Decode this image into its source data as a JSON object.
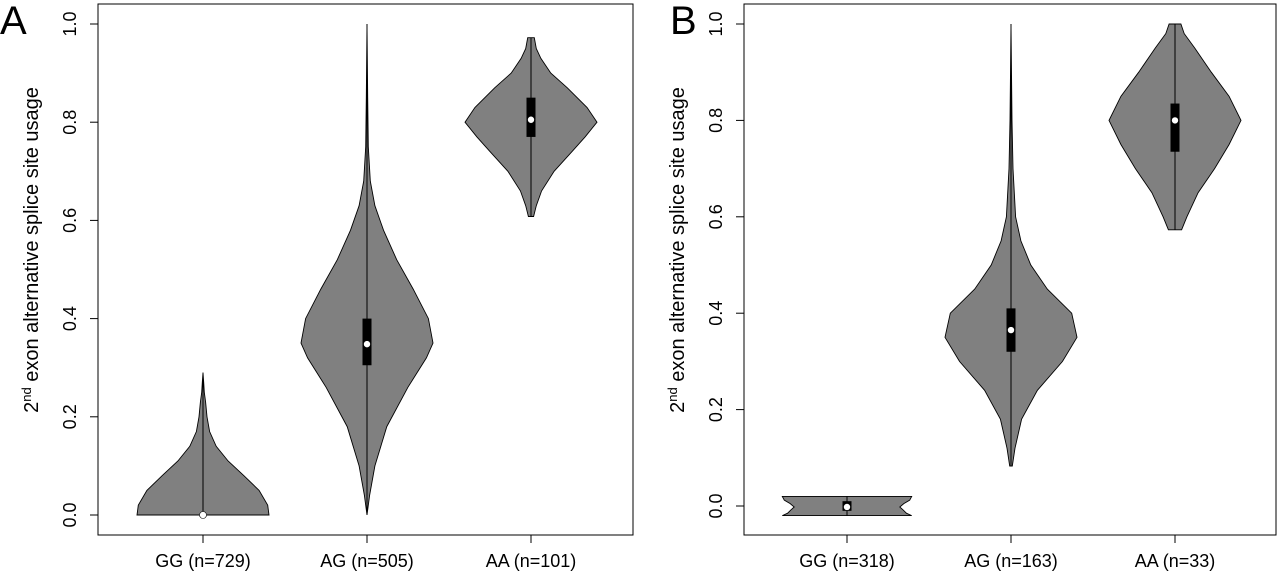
{
  "chart_data": [
    {
      "panel": "A",
      "type": "violin",
      "ylabel_main": "exon alternative splice site usage",
      "ylabel_num": "2",
      "ylabel_sup": "nd",
      "ylim": [
        -0.03,
        1.04
      ],
      "yticks": [
        0.0,
        0.2,
        0.4,
        0.6,
        0.8,
        1.0
      ],
      "ytick_labels": [
        "0.0",
        "0.2",
        "0.4",
        "0.6",
        "0.8",
        "1.0"
      ],
      "categories": [
        "GG (n=729)",
        "AG (n=505)",
        "AA (n=101)"
      ],
      "fill_color": "#808080",
      "violins": [
        {
          "category": "GG (n=729)",
          "min": 0.0,
          "max": 0.29,
          "q1": 0.0,
          "median": 0.0,
          "q3": 0.0,
          "profile": [
            [
              0.0,
              1.0
            ],
            [
              0.02,
              0.98
            ],
            [
              0.05,
              0.85
            ],
            [
              0.08,
              0.62
            ],
            [
              0.11,
              0.38
            ],
            [
              0.14,
              0.2
            ],
            [
              0.17,
              0.1
            ],
            [
              0.2,
              0.06
            ],
            [
              0.23,
              0.04
            ],
            [
              0.25,
              0.02
            ],
            [
              0.27,
              0.01
            ],
            [
              0.29,
              0.0
            ]
          ]
        },
        {
          "category": "AG (n=505)",
          "min": 0.0,
          "max": 1.0,
          "q1": 0.305,
          "median": 0.348,
          "q3": 0.4,
          "profile": [
            [
              0.0,
              0.0
            ],
            [
              0.04,
              0.04
            ],
            [
              0.1,
              0.12
            ],
            [
              0.18,
              0.3
            ],
            [
              0.26,
              0.62
            ],
            [
              0.32,
              0.9
            ],
            [
              0.35,
              1.0
            ],
            [
              0.4,
              0.93
            ],
            [
              0.46,
              0.7
            ],
            [
              0.52,
              0.45
            ],
            [
              0.58,
              0.25
            ],
            [
              0.63,
              0.12
            ],
            [
              0.68,
              0.05
            ],
            [
              0.75,
              0.02
            ],
            [
              0.85,
              0.01
            ],
            [
              1.0,
              0.0
            ]
          ]
        },
        {
          "category": "AA (n=101)",
          "min": 0.608,
          "max": 0.972,
          "q1": 0.77,
          "median": 0.805,
          "q3": 0.85,
          "profile": [
            [
              0.608,
              0.04
            ],
            [
              0.63,
              0.08
            ],
            [
              0.66,
              0.16
            ],
            [
              0.7,
              0.35
            ],
            [
              0.74,
              0.62
            ],
            [
              0.77,
              0.82
            ],
            [
              0.8,
              1.0
            ],
            [
              0.83,
              0.85
            ],
            [
              0.87,
              0.55
            ],
            [
              0.9,
              0.3
            ],
            [
              0.93,
              0.15
            ],
            [
              0.95,
              0.08
            ],
            [
              0.972,
              0.05
            ]
          ]
        }
      ]
    },
    {
      "panel": "B",
      "type": "violin",
      "ylabel_main": "exon alternative splice site usage",
      "ylabel_num": "2",
      "ylabel_sup": "nd",
      "ylim": [
        -0.05,
        1.04
      ],
      "yticks": [
        0.0,
        0.2,
        0.4,
        0.6,
        0.8,
        1.0
      ],
      "ytick_labels": [
        "0.0",
        "0.2",
        "0.4",
        "0.6",
        "0.8",
        "1.0"
      ],
      "categories": [
        "GG (n=318)",
        "AG (n=163)",
        "AA (n=33)"
      ],
      "fill_color": "#808080",
      "violins": [
        {
          "category": "GG (n=318)",
          "min": -0.02,
          "max": 0.02,
          "q1": -0.01,
          "median": -0.002,
          "q3": 0.01,
          "profile": [
            [
              -0.02,
              0.98
            ],
            [
              -0.015,
              0.9
            ],
            [
              -0.008,
              0.85
            ],
            [
              -0.002,
              0.8
            ],
            [
              0.005,
              0.86
            ],
            [
              0.012,
              0.95
            ],
            [
              0.02,
              0.98
            ]
          ]
        },
        {
          "category": "AG (n=163)",
          "min": 0.083,
          "max": 1.0,
          "q1": 0.32,
          "median": 0.365,
          "q3": 0.41,
          "profile": [
            [
              0.083,
              0.02
            ],
            [
              0.12,
              0.06
            ],
            [
              0.18,
              0.16
            ],
            [
              0.24,
              0.4
            ],
            [
              0.3,
              0.78
            ],
            [
              0.35,
              1.0
            ],
            [
              0.4,
              0.92
            ],
            [
              0.45,
              0.55
            ],
            [
              0.5,
              0.3
            ],
            [
              0.55,
              0.15
            ],
            [
              0.6,
              0.07
            ],
            [
              0.7,
              0.03
            ],
            [
              0.8,
              0.015
            ],
            [
              1.0,
              0.0
            ]
          ]
        },
        {
          "category": "AA (n=33)",
          "min": 0.573,
          "max": 1.0,
          "q1": 0.735,
          "median": 0.8,
          "q3": 0.835,
          "profile": [
            [
              0.573,
              0.1
            ],
            [
              0.6,
              0.18
            ],
            [
              0.65,
              0.35
            ],
            [
              0.7,
              0.6
            ],
            [
              0.75,
              0.82
            ],
            [
              0.8,
              1.0
            ],
            [
              0.85,
              0.82
            ],
            [
              0.9,
              0.55
            ],
            [
              0.95,
              0.3
            ],
            [
              0.98,
              0.14
            ],
            [
              1.0,
              0.09
            ]
          ]
        }
      ]
    }
  ]
}
